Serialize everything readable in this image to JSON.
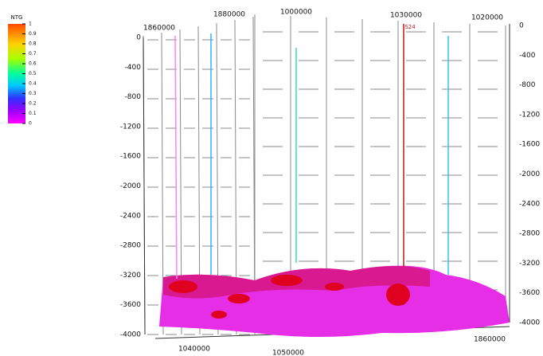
{
  "colorbar": {
    "title": "NTG",
    "labels": [
      "1",
      "0.9",
      "0.8",
      "0.7",
      "0.6",
      "0.5",
      "0.4",
      "0.3",
      "0.2",
      "0.1",
      "0"
    ]
  },
  "left_axis": {
    "labels": [
      "0",
      "-400",
      "-800",
      "-1200",
      "-1600",
      "-2000",
      "-2400",
      "-2800",
      "-3200",
      "-3600",
      "-4000"
    ]
  },
  "right_axis": {
    "labels": [
      "0",
      "-400",
      "-800",
      "-1200",
      "-1600",
      "-2000",
      "-2400",
      "-2800",
      "-3200",
      "-3600",
      "-4000"
    ]
  },
  "top_axis": {
    "labels": [
      "1860000",
      "1880000",
      "1000000",
      "1030000",
      "1020000"
    ]
  },
  "bottom_axis": {
    "labels": [
      "1040000",
      "1050000",
      "1860000"
    ]
  },
  "wells": [
    {
      "label": "S24"
    }
  ]
}
